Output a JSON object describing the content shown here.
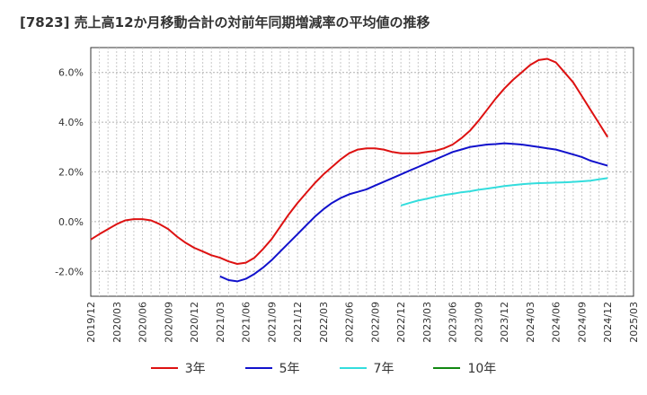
{
  "title": "[7823]  売上高12か月移動合計の対前年同期増減率の平均値の推移",
  "chart_data": {
    "type": "line",
    "ylim": [
      -3.0,
      7.0
    ],
    "y_ticks": [
      -2.0,
      0.0,
      2.0,
      4.0,
      6.0
    ],
    "y_tick_labels": [
      "-2.0%",
      "0.0%",
      "2.0%",
      "4.0%",
      "6.0%"
    ],
    "x_range": [
      "2019-12",
      "2025-03"
    ],
    "x_tick_labels": [
      "2019/12",
      "2020/03",
      "2020/06",
      "2020/09",
      "2020/12",
      "2021/03",
      "2021/06",
      "2021/09",
      "2021/12",
      "2022/03",
      "2022/06",
      "2022/09",
      "2022/12",
      "2023/03",
      "2023/06",
      "2023/09",
      "2023/12",
      "2024/03",
      "2024/06",
      "2024/09",
      "2024/12",
      "2025/03"
    ],
    "grid": true,
    "legend_position": "bottom",
    "series": [
      {
        "name": "3年",
        "color": "#dd1111",
        "x": [
          "2019-12",
          "2020-01",
          "2020-02",
          "2020-03",
          "2020-04",
          "2020-05",
          "2020-06",
          "2020-07",
          "2020-08",
          "2020-09",
          "2020-10",
          "2020-11",
          "2020-12",
          "2021-01",
          "2021-02",
          "2021-03",
          "2021-04",
          "2021-05",
          "2021-06",
          "2021-07",
          "2021-08",
          "2021-09",
          "2021-10",
          "2021-11",
          "2021-12",
          "2022-01",
          "2022-02",
          "2022-03",
          "2022-04",
          "2022-05",
          "2022-06",
          "2022-07",
          "2022-08",
          "2022-09",
          "2022-10",
          "2022-11",
          "2022-12",
          "2023-01",
          "2023-02",
          "2023-03",
          "2023-04",
          "2023-05",
          "2023-06",
          "2023-07",
          "2023-08",
          "2023-09",
          "2023-10",
          "2023-11",
          "2023-12",
          "2024-01",
          "2024-02",
          "2024-03",
          "2024-04",
          "2024-05",
          "2024-06",
          "2024-07",
          "2024-08",
          "2024-09",
          "2024-10",
          "2024-11",
          "2024-12"
        ],
        "values": [
          -0.72,
          -0.5,
          -0.3,
          -0.1,
          0.05,
          0.1,
          0.1,
          0.05,
          -0.1,
          -0.3,
          -0.6,
          -0.85,
          -1.05,
          -1.2,
          -1.35,
          -1.45,
          -1.6,
          -1.7,
          -1.65,
          -1.45,
          -1.1,
          -0.7,
          -0.2,
          0.3,
          0.75,
          1.15,
          1.55,
          1.9,
          2.2,
          2.5,
          2.75,
          2.9,
          2.95,
          2.95,
          2.9,
          2.8,
          2.75,
          2.75,
          2.75,
          2.8,
          2.85,
          2.95,
          3.1,
          3.35,
          3.65,
          4.05,
          4.5,
          4.95,
          5.35,
          5.7,
          6.0,
          6.3,
          6.5,
          6.55,
          6.4,
          6.0,
          5.6,
          5.05,
          4.5,
          3.95,
          3.4
        ]
      },
      {
        "name": "5年",
        "color": "#1111cc",
        "x": [
          "2021-03",
          "2021-04",
          "2021-05",
          "2021-06",
          "2021-07",
          "2021-08",
          "2021-09",
          "2021-10",
          "2021-11",
          "2021-12",
          "2022-01",
          "2022-02",
          "2022-03",
          "2022-04",
          "2022-05",
          "2022-06",
          "2022-07",
          "2022-08",
          "2022-09",
          "2022-10",
          "2022-11",
          "2022-12",
          "2023-01",
          "2023-02",
          "2023-03",
          "2023-04",
          "2023-05",
          "2023-06",
          "2023-07",
          "2023-08",
          "2023-09",
          "2023-10",
          "2023-11",
          "2023-12",
          "2024-01",
          "2024-02",
          "2024-03",
          "2024-04",
          "2024-05",
          "2024-06",
          "2024-07",
          "2024-08",
          "2024-09",
          "2024-10",
          "2024-11",
          "2024-12"
        ],
        "values": [
          -2.2,
          -2.35,
          -2.4,
          -2.3,
          -2.1,
          -1.85,
          -1.55,
          -1.2,
          -0.85,
          -0.5,
          -0.15,
          0.2,
          0.5,
          0.75,
          0.95,
          1.1,
          1.2,
          1.3,
          1.45,
          1.6,
          1.75,
          1.9,
          2.05,
          2.2,
          2.35,
          2.5,
          2.65,
          2.8,
          2.9,
          3.0,
          3.05,
          3.1,
          3.12,
          3.15,
          3.13,
          3.1,
          3.05,
          3.0,
          2.95,
          2.9,
          2.8,
          2.7,
          2.6,
          2.45,
          2.35,
          2.25
        ]
      },
      {
        "name": "7年",
        "color": "#33dddd",
        "x": [
          "2022-12",
          "2023-01",
          "2023-02",
          "2023-03",
          "2023-04",
          "2023-05",
          "2023-06",
          "2023-07",
          "2023-08",
          "2023-09",
          "2023-10",
          "2023-11",
          "2023-12",
          "2024-01",
          "2024-02",
          "2024-03",
          "2024-04",
          "2024-05",
          "2024-06",
          "2024-07",
          "2024-08",
          "2024-09",
          "2024-10",
          "2024-11",
          "2024-12"
        ],
        "values": [
          0.65,
          0.75,
          0.85,
          0.92,
          1.0,
          1.07,
          1.12,
          1.18,
          1.22,
          1.28,
          1.33,
          1.38,
          1.43,
          1.47,
          1.5,
          1.53,
          1.55,
          1.56,
          1.57,
          1.58,
          1.6,
          1.62,
          1.65,
          1.7,
          1.75
        ]
      },
      {
        "name": "10年",
        "color": "#118811",
        "x": [],
        "values": []
      }
    ]
  }
}
